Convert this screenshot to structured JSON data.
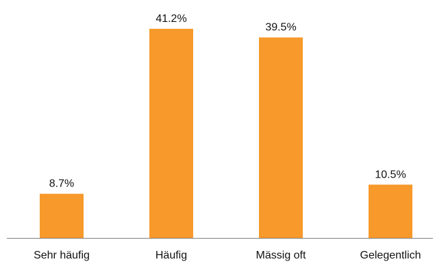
{
  "chart_data": {
    "type": "bar",
    "categories": [
      "Sehr häufig",
      "Häufig",
      "Mässig oft",
      "Gelegentlich"
    ],
    "values": [
      8.7,
      41.2,
      39.5,
      10.5
    ],
    "data_labels": [
      "8.7%",
      "41.2%",
      "39.5%",
      "10.5%"
    ],
    "unit": "%",
    "ylim": [
      0,
      41.2
    ],
    "grid": false,
    "legend": "none",
    "bar_color": "#F7992B",
    "axis_color": "#7F7F7F",
    "label_color": "#111111"
  }
}
